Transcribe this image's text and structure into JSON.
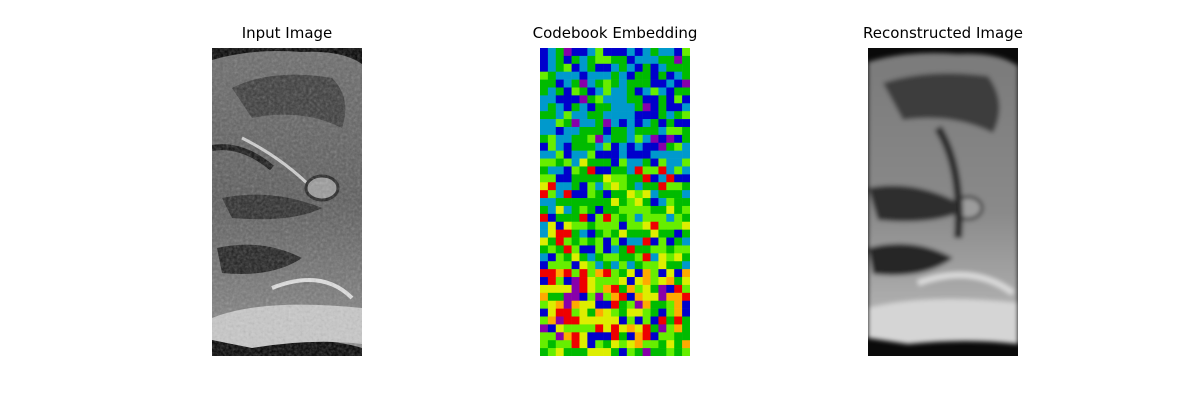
{
  "panels": [
    {
      "title": "Input Image"
    },
    {
      "title": "Codebook Embedding"
    },
    {
      "title": "Reconstructed Image"
    }
  ],
  "codebook": {
    "grid_cols": 19,
    "grid_rows": 39,
    "palette": [
      "#0000cc",
      "#0099cc",
      "#00bb00",
      "#66ee00",
      "#ddee00",
      "#ffaa00",
      "#ee0000",
      "#8800aa"
    ]
  }
}
